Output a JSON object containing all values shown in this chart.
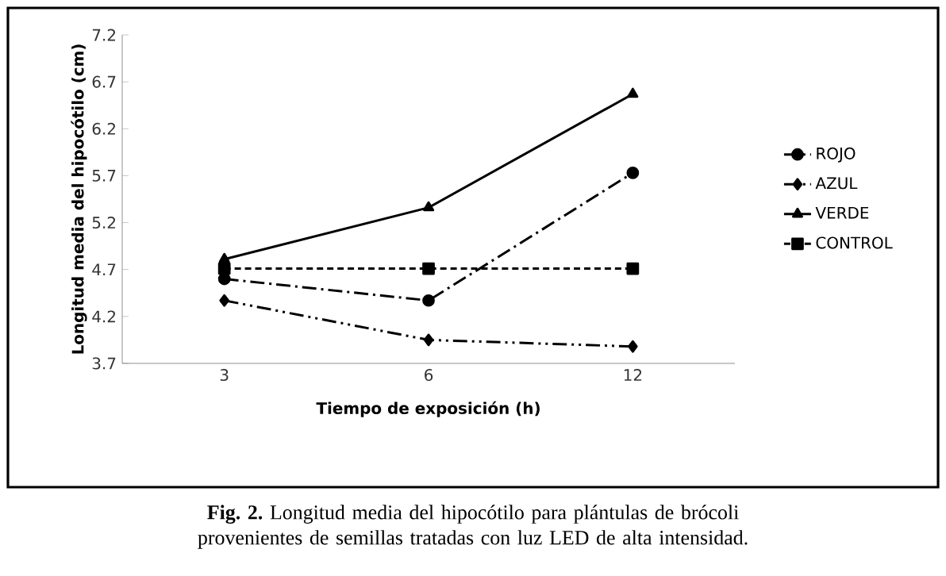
{
  "chart_data": {
    "type": "line",
    "xlabel": "Tiempo de exposición (h)",
    "ylabel": "Longitud media del hipocótilo (cm)",
    "categories": [
      "3",
      "6",
      "12"
    ],
    "ylim": [
      3.7,
      7.2
    ],
    "yticks": [
      3.7,
      4.2,
      4.7,
      5.2,
      5.7,
      6.2,
      6.7,
      7.2
    ],
    "series": [
      {
        "name": "ROJO",
        "color": "#000000",
        "values": [
          4.6,
          4.37,
          5.73
        ],
        "marker": "circle",
        "line_style": "dashdot"
      },
      {
        "name": "AZUL",
        "color": "#000000",
        "values": [
          4.37,
          3.95,
          3.88
        ],
        "marker": "diamond",
        "line_style": "dashdotdot"
      },
      {
        "name": "VERDE",
        "color": "#000000",
        "values": [
          4.81,
          5.36,
          6.57
        ],
        "marker": "triangle",
        "line_style": "solid"
      },
      {
        "name": "CONTROL",
        "color": "#000000",
        "values": [
          4.71,
          4.71,
          4.71
        ],
        "marker": "square",
        "line_style": "dashed"
      }
    ],
    "grid": false,
    "legend": "right",
    "annotations": [
      "**Fig. 2.** Longitud media del hipocótilo para plántulas de brócoli provenientes de semillas tratadas con luz LED de alta intensidad."
    ]
  }
}
